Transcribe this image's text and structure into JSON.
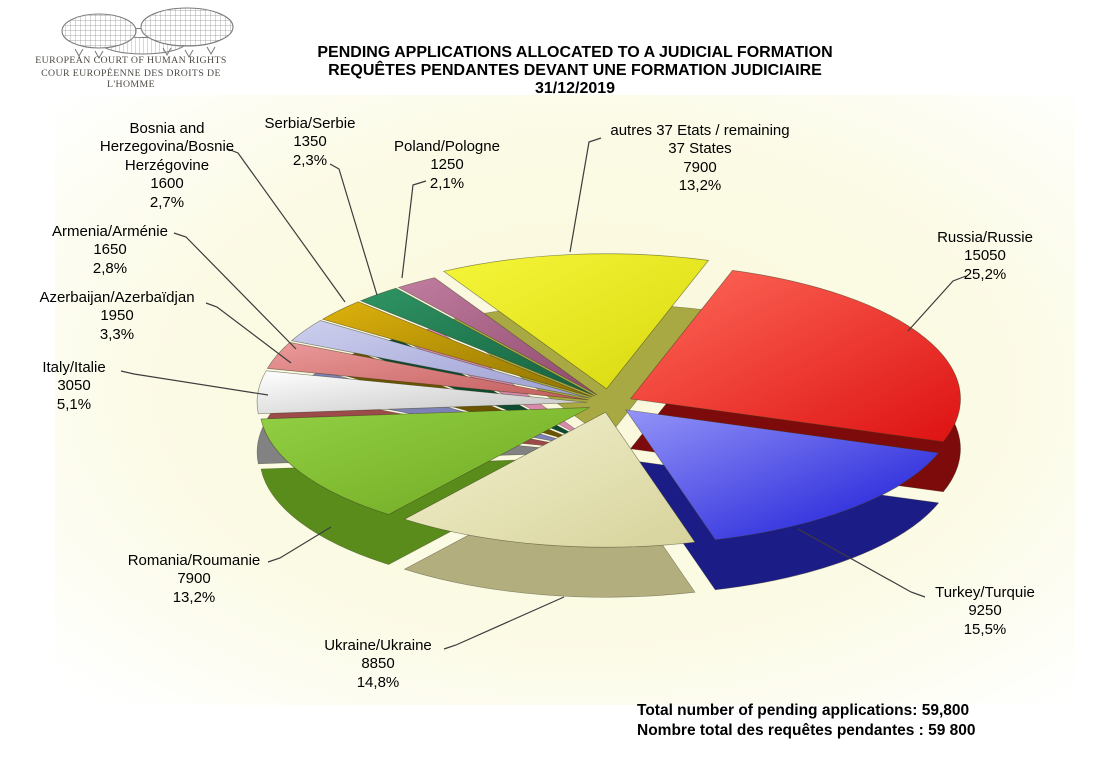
{
  "logo": {
    "line1": "EUROPEAN COURT OF HUMAN RIGHTS",
    "line2": "COUR EUROPÉENNE DES DROITS DE L'HOMME"
  },
  "title": {
    "line1": "PENDING APPLICATIONS ALLOCATED TO A JUDICIAL FORMATION",
    "line2": "REQUÊTES PENDANTES DEVANT UNE FORMATION JUDICIAIRE",
    "line3": "31/12/2019"
  },
  "totals": {
    "line1": "Total number of pending applications:  59,800",
    "line2": "Nombre total des requêtes pendantes : 59 800"
  },
  "chart_data": {
    "type": "pie",
    "title": "PENDING APPLICATIONS ALLOCATED TO A JUDICIAL FORMATION",
    "subtitle": "REQUÊTES PENDANTES DEVANT UNE FORMATION JUDICIAIRE",
    "date": "31/12/2019",
    "total": 59800,
    "background_tint": "#fbf9e3",
    "slices": [
      {
        "key": "russia",
        "label_lines": [
          "Russia/Russie"
        ],
        "value": 15050,
        "value_str": "15050",
        "pct_str": "25,2%",
        "color_light": "#ff6a5a",
        "color_dark": "#dd1212",
        "side": "#7e0b0b"
      },
      {
        "key": "turkey",
        "label_lines": [
          "Turkey/Turquie"
        ],
        "value": 9250,
        "value_str": "9250",
        "pct_str": "15,5%",
        "color_light": "#9494f8",
        "color_dark": "#1717d6",
        "side": "#1c1c86"
      },
      {
        "key": "ukraine",
        "label_lines": [
          "Ukraine/Ukraine"
        ],
        "value": 8850,
        "value_str": "8850",
        "pct_str": "14,8%",
        "color_light": "#f3f1cf",
        "color_dark": "#d7d39c",
        "side": "#b3ae7e"
      },
      {
        "key": "romania",
        "label_lines": [
          "Romania/Roumanie"
        ],
        "value": 7900,
        "value_str": "7900",
        "pct_str": "13,2%",
        "color_light": "#93d044",
        "color_dark": "#6fa822",
        "side": "#5a8c1c"
      },
      {
        "key": "italy",
        "label_lines": [
          "Italy/Italie"
        ],
        "value": 3050,
        "value_str": "3050",
        "pct_str": "5,1%",
        "color_light": "#ffffff",
        "color_dark": "#c2c2c2",
        "side": "#828282"
      },
      {
        "key": "azerbaijan",
        "label_lines": [
          "Azerbaijan/Azerbaïdjan"
        ],
        "value": 1950,
        "value_str": "1950",
        "pct_str": "3,3%",
        "color_light": "#eb9a9a",
        "color_dark": "#c25c5c",
        "side": "#9c4a4a"
      },
      {
        "key": "armenia",
        "label_lines": [
          "Armenia/Arménie"
        ],
        "value": 1650,
        "value_str": "1650",
        "pct_str": "2,8%",
        "color_light": "#cdcfee",
        "color_dark": "#9b9ed2",
        "side": "#7e81b5"
      },
      {
        "key": "bosnia-herzegovina",
        "label_lines": [
          "Bosnia and",
          "Herzegovina/Bosnie",
          "Herzégovine"
        ],
        "value": 1600,
        "value_str": "1600",
        "pct_str": "2,7%",
        "color_light": "#ddb10c",
        "color_dark": "#8f7202",
        "side": "#6a5400"
      },
      {
        "key": "serbia",
        "label_lines": [
          "Serbia/Serbie"
        ],
        "value": 1350,
        "value_str": "1350",
        "pct_str": "2,3%",
        "color_light": "#2f9463",
        "color_dark": "#14603f",
        "side": "#0d4a30"
      },
      {
        "key": "poland",
        "label_lines": [
          "Poland/Pologne"
        ],
        "value": 1250,
        "value_str": "1250",
        "pct_str": "2,1%",
        "color_light": "#c07d9f",
        "color_dark": "#8f4a6e",
        "side": "#d98aac"
      },
      {
        "key": "other-states",
        "label_lines": [
          "autres 37 Etats / remaining",
          "37 States"
        ],
        "value": 7900,
        "value_str": "7900",
        "pct_str": "13,2%",
        "color_light": "#f6f63a",
        "color_dark": "#d8d80e",
        "side": "#a9a943",
        "explode": 35
      }
    ]
  }
}
